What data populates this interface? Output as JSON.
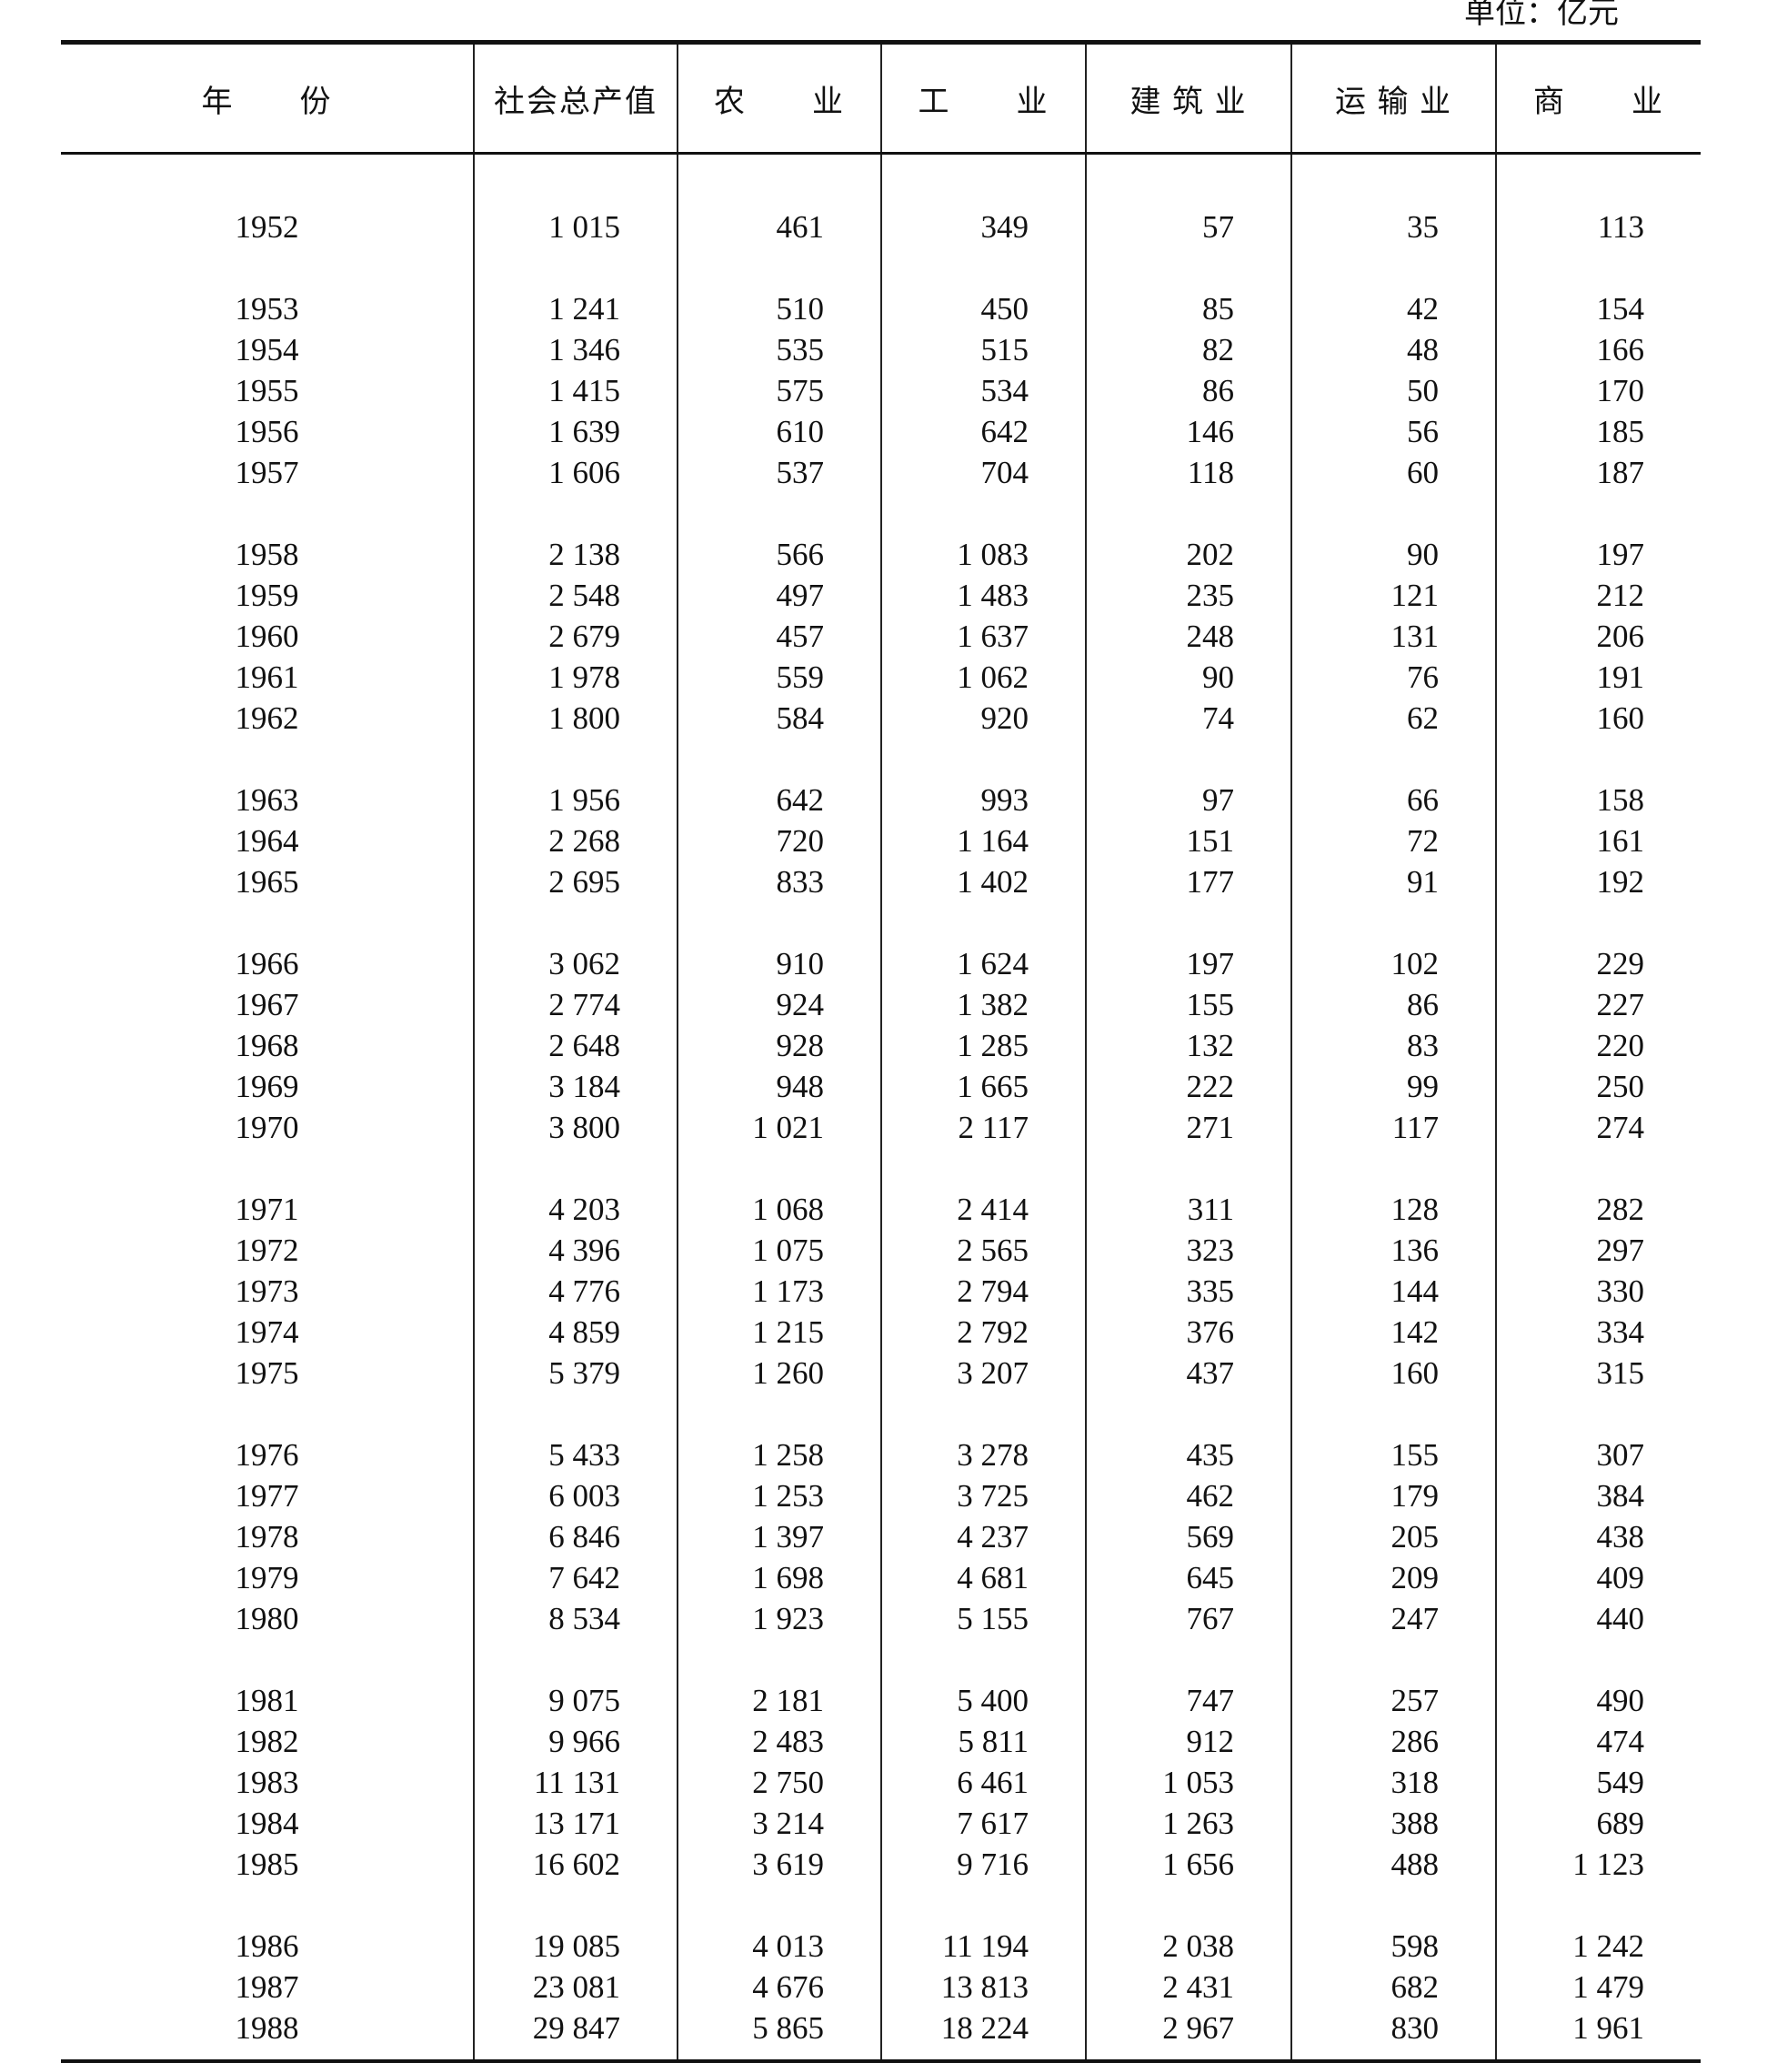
{
  "unit_label": "单位：亿元",
  "headers": [
    "年　　份",
    "社会总产值",
    "农　　业",
    "工　　业",
    "建 筑 业",
    "运 输 业",
    "商　　业"
  ],
  "groups": [
    [
      [
        "1952",
        "1 015",
        "461",
        "349",
        "57",
        "35",
        "113"
      ]
    ],
    [
      [
        "1953",
        "1 241",
        "510",
        "450",
        "85",
        "42",
        "154"
      ],
      [
        "1954",
        "1 346",
        "535",
        "515",
        "82",
        "48",
        "166"
      ],
      [
        "1955",
        "1 415",
        "575",
        "534",
        "86",
        "50",
        "170"
      ],
      [
        "1956",
        "1 639",
        "610",
        "642",
        "146",
        "56",
        "185"
      ],
      [
        "1957",
        "1 606",
        "537",
        "704",
        "118",
        "60",
        "187"
      ]
    ],
    [
      [
        "1958",
        "2 138",
        "566",
        "1 083",
        "202",
        "90",
        "197"
      ],
      [
        "1959",
        "2 548",
        "497",
        "1 483",
        "235",
        "121",
        "212"
      ],
      [
        "1960",
        "2 679",
        "457",
        "1 637",
        "248",
        "131",
        "206"
      ],
      [
        "1961",
        "1 978",
        "559",
        "1 062",
        "90",
        "76",
        "191"
      ],
      [
        "1962",
        "1 800",
        "584",
        "920",
        "74",
        "62",
        "160"
      ]
    ],
    [
      [
        "1963",
        "1 956",
        "642",
        "993",
        "97",
        "66",
        "158"
      ],
      [
        "1964",
        "2 268",
        "720",
        "1 164",
        "151",
        "72",
        "161"
      ],
      [
        "1965",
        "2 695",
        "833",
        "1 402",
        "177",
        "91",
        "192"
      ]
    ],
    [
      [
        "1966",
        "3 062",
        "910",
        "1 624",
        "197",
        "102",
        "229"
      ],
      [
        "1967",
        "2 774",
        "924",
        "1 382",
        "155",
        "86",
        "227"
      ],
      [
        "1968",
        "2 648",
        "928",
        "1 285",
        "132",
        "83",
        "220"
      ],
      [
        "1969",
        "3 184",
        "948",
        "1 665",
        "222",
        "99",
        "250"
      ],
      [
        "1970",
        "3 800",
        "1 021",
        "2 117",
        "271",
        "117",
        "274"
      ]
    ],
    [
      [
        "1971",
        "4 203",
        "1 068",
        "2 414",
        "311",
        "128",
        "282"
      ],
      [
        "1972",
        "4 396",
        "1 075",
        "2 565",
        "323",
        "136",
        "297"
      ],
      [
        "1973",
        "4 776",
        "1 173",
        "2 794",
        "335",
        "144",
        "330"
      ],
      [
        "1974",
        "4 859",
        "1 215",
        "2 792",
        "376",
        "142",
        "334"
      ],
      [
        "1975",
        "5 379",
        "1 260",
        "3 207",
        "437",
        "160",
        "315"
      ]
    ],
    [
      [
        "1976",
        "5 433",
        "1 258",
        "3 278",
        "435",
        "155",
        "307"
      ],
      [
        "1977",
        "6 003",
        "1 253",
        "3 725",
        "462",
        "179",
        "384"
      ],
      [
        "1978",
        "6 846",
        "1 397",
        "4 237",
        "569",
        "205",
        "438"
      ],
      [
        "1979",
        "7 642",
        "1 698",
        "4 681",
        "645",
        "209",
        "409"
      ],
      [
        "1980",
        "8 534",
        "1 923",
        "5 155",
        "767",
        "247",
        "440"
      ]
    ],
    [
      [
        "1981",
        "9 075",
        "2 181",
        "5 400",
        "747",
        "257",
        "490"
      ],
      [
        "1982",
        "9 966",
        "2 483",
        "5 811",
        "912",
        "286",
        "474"
      ],
      [
        "1983",
        "11 131",
        "2 750",
        "6 461",
        "1 053",
        "318",
        "549"
      ],
      [
        "1984",
        "13 171",
        "3 214",
        "7 617",
        "1 263",
        "388",
        "689"
      ],
      [
        "1985",
        "16 602",
        "3 619",
        "9 716",
        "1 656",
        "488",
        "1 123"
      ]
    ],
    [
      [
        "1986",
        "19 085",
        "4 013",
        "11 194",
        "2 038",
        "598",
        "1 242"
      ],
      [
        "1987",
        "23 081",
        "4 676",
        "13 813",
        "2 431",
        "682",
        "1 479"
      ],
      [
        "1988",
        "29 847",
        "5 865",
        "18 224",
        "2 967",
        "830",
        "1 961"
      ]
    ]
  ]
}
